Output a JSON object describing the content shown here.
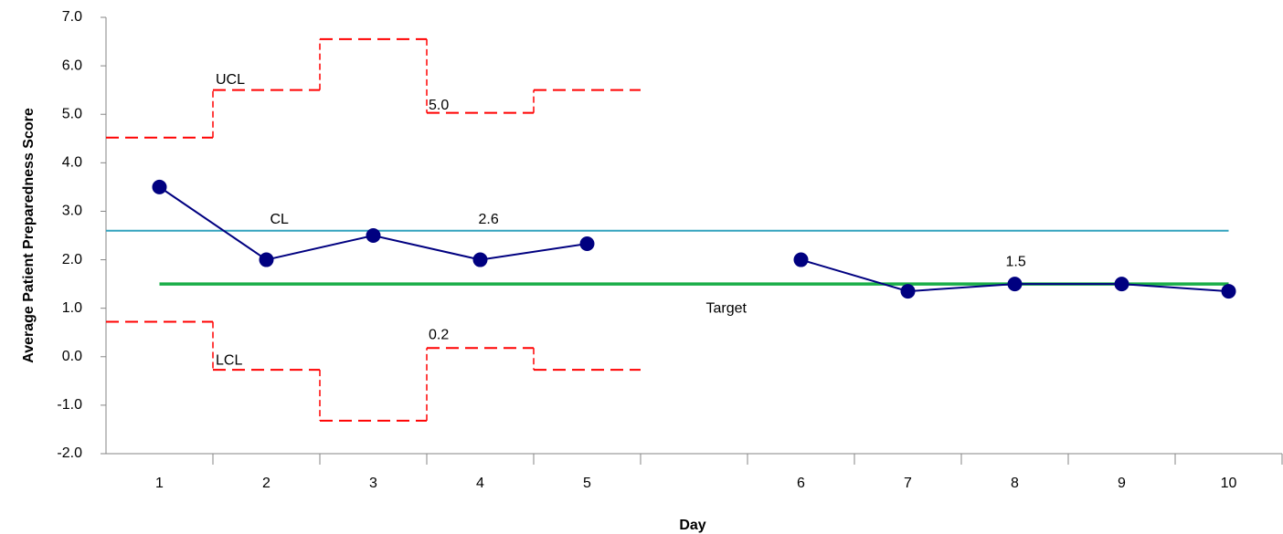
{
  "chart_data": {
    "type": "line",
    "x_label": "Day",
    "y_label": "Average Patient Preparedness Score",
    "categories": [
      "1",
      "2",
      "3",
      "4",
      "5",
      null,
      "6",
      "7",
      "8",
      "9",
      "10"
    ],
    "series": [
      {
        "color": "#000080",
        "values": [
          3.5,
          2.0,
          2.5,
          2.0,
          2.33,
          null,
          2.0,
          1.35,
          1.5,
          1.5,
          1.35
        ]
      }
    ],
    "ucl": {
      "label": "UCL",
      "color": "#ff0000",
      "values": [
        4.52,
        5.5,
        6.55,
        5.03,
        5.5
      ],
      "value_labels": [
        null,
        null,
        null,
        "5.0",
        null
      ]
    },
    "lcl": {
      "label": "LCL",
      "color": "#ff0000",
      "values": [
        0.72,
        -0.27,
        -1.32,
        0.18,
        -0.27
      ],
      "value_labels": [
        null,
        null,
        null,
        "0.2",
        null
      ]
    },
    "cl": {
      "label": "CL",
      "color": "#31a2bd",
      "value": 2.6,
      "value_label": "2.6"
    },
    "target": {
      "label": "Target",
      "color": "#1aae48",
      "value": 1.5,
      "value_label": "1.5"
    },
    "ylim": [
      -2,
      7
    ],
    "yticks": [
      {
        "value": -2,
        "label": "-2.0"
      },
      {
        "value": -1,
        "label": "-1.0"
      },
      {
        "value": 0,
        "label": "0.0"
      },
      {
        "value": 1,
        "label": "1.0"
      },
      {
        "value": 2,
        "label": "2.0"
      },
      {
        "value": 3,
        "label": "3.0"
      },
      {
        "value": 4,
        "label": "4.0"
      },
      {
        "value": 5,
        "label": "5.0"
      },
      {
        "value": 6,
        "label": "6.0"
      },
      {
        "value": 7,
        "label": "7.0"
      }
    ]
  }
}
